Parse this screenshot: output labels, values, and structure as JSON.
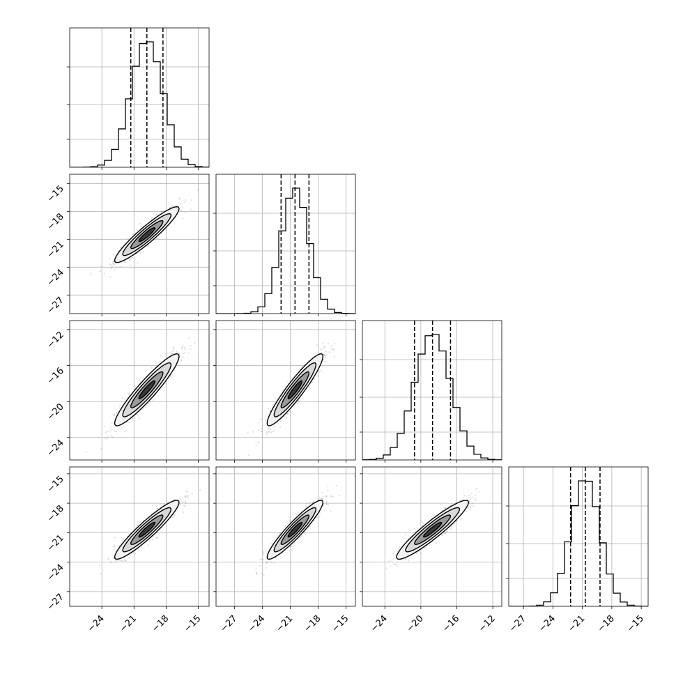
{
  "chart_data": {
    "type": "corner",
    "n_params": 4,
    "grid": true,
    "param_labels": [
      "",
      "",
      "",
      ""
    ],
    "params": [
      {
        "mean": -19.8,
        "std": 1.5,
        "q16": -21.3,
        "q50": -19.8,
        "q84": -18.3,
        "range": [
          -27.0,
          -14.0
        ],
        "ticks": [
          -24,
          -21,
          -18,
          -15
        ],
        "tick_labels": [
          "−24",
          "−21",
          "−18",
          "−15"
        ]
      },
      {
        "mean": -20.5,
        "std": 1.5,
        "q16": -22.0,
        "q50": -20.5,
        "q84": -19.0,
        "range": [
          -29.0,
          -14.0
        ],
        "ticks": [
          -27,
          -24,
          -21,
          -18,
          -15
        ],
        "tick_labels": [
          "−27",
          "−24",
          "−21",
          "−18",
          "−15"
        ]
      },
      {
        "mean": -18.7,
        "std": 2.0,
        "q16": -20.7,
        "q50": -18.7,
        "q84": -16.7,
        "range": [
          -26.5,
          -11.0
        ],
        "ticks": [
          -24,
          -20,
          -16,
          -12
        ],
        "tick_labels": [
          "−24",
          "−20",
          "−16",
          "−12"
        ]
      },
      {
        "mean": -20.7,
        "std": 1.5,
        "q16": -22.2,
        "q50": -20.7,
        "q84": -19.2,
        "range": [
          -28.5,
          -14.3
        ],
        "ticks": [
          -27,
          -24,
          -21,
          -18,
          -15
        ],
        "tick_labels": [
          "−27",
          "−24",
          "−21",
          "−18",
          "−15"
        ]
      }
    ],
    "correlation": 0.93,
    "histogram_bins": 20,
    "contour_levels_sigma": [
      0.5,
      1.0,
      1.5,
      2.0
    ]
  }
}
